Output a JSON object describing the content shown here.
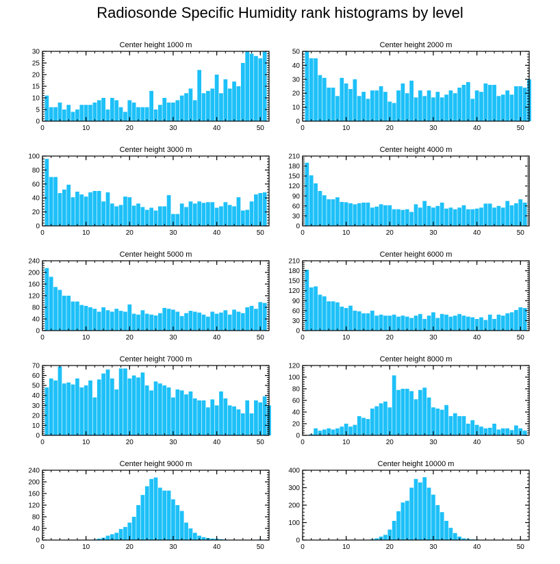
{
  "title": "Radiosonde Specific Humidity rank histograms by level",
  "colors": {
    "bar": "#1ec0f8",
    "axis": "#000000",
    "background": "#ffffff"
  },
  "chart_data": [
    {
      "type": "bar",
      "title": "Center height 1000 m",
      "x_ticks": [
        0,
        10,
        20,
        30,
        40,
        50
      ],
      "xlim": [
        0,
        52
      ],
      "y_ticks": [
        0,
        5,
        10,
        15,
        20,
        25,
        30
      ],
      "ylim": [
        0,
        30
      ],
      "values": [
        11,
        6,
        6,
        8,
        5,
        7,
        4,
        5,
        7,
        7,
        7,
        8,
        9,
        10,
        5,
        10,
        9,
        6,
        4,
        9,
        8,
        6,
        6,
        6,
        13,
        5,
        7,
        10,
        8,
        8,
        9,
        11,
        12,
        14,
        9,
        22,
        12,
        13,
        14,
        20,
        12,
        18,
        14,
        17,
        15,
        25,
        30,
        29,
        28,
        27,
        30
      ]
    },
    {
      "type": "bar",
      "title": "Center height 2000 m",
      "x_ticks": [
        0,
        10,
        20,
        30,
        40,
        50
      ],
      "xlim": [
        0,
        52
      ],
      "y_ticks": [
        0,
        10,
        20,
        30,
        40,
        50
      ],
      "ylim": [
        0,
        50
      ],
      "values": [
        50,
        45,
        45,
        33,
        31,
        24,
        24,
        18,
        31,
        27,
        23,
        30,
        18,
        21,
        16,
        22,
        22,
        25,
        21,
        14,
        13,
        22,
        27,
        20,
        29,
        17,
        22,
        18,
        22,
        17,
        21,
        17,
        19,
        22,
        20,
        24,
        26,
        28,
        16,
        22,
        21,
        27,
        26,
        26,
        18,
        19,
        22,
        19,
        25,
        25,
        24,
        30
      ]
    },
    {
      "type": "bar",
      "title": "Center height 3000 m",
      "x_ticks": [
        0,
        10,
        20,
        30,
        40,
        50
      ],
      "xlim": [
        0,
        52
      ],
      "y_ticks": [
        0,
        20,
        40,
        60,
        80,
        100
      ],
      "ylim": [
        0,
        100
      ],
      "values": [
        96,
        70,
        70,
        47,
        52,
        59,
        41,
        49,
        45,
        42,
        48,
        50,
        50,
        35,
        48,
        32,
        28,
        30,
        42,
        41,
        29,
        32,
        27,
        23,
        26,
        22,
        28,
        28,
        44,
        17,
        17,
        32,
        27,
        35,
        32,
        35,
        33,
        34,
        34,
        26,
        28,
        34,
        30,
        28,
        41,
        22,
        23,
        35,
        45,
        47,
        48
      ]
    },
    {
      "type": "bar",
      "title": "Center height 4000 m",
      "x_ticks": [
        0,
        10,
        20,
        30,
        40,
        50
      ],
      "xlim": [
        0,
        52
      ],
      "y_ticks": [
        0,
        30,
        60,
        90,
        120,
        150,
        180,
        210
      ],
      "ylim": [
        0,
        210
      ],
      "values": [
        190,
        152,
        128,
        105,
        92,
        80,
        80,
        86,
        72,
        71,
        68,
        65,
        68,
        70,
        70,
        55,
        58,
        65,
        62,
        62,
        50,
        50,
        48,
        50,
        42,
        65,
        55,
        75,
        60,
        55,
        60,
        70,
        52,
        55,
        50,
        55,
        62,
        50,
        50,
        52,
        55,
        67,
        67,
        55,
        60,
        55,
        75,
        62,
        68,
        80,
        70
      ]
    },
    {
      "type": "bar",
      "title": "Center height 5000 m",
      "x_ticks": [
        0,
        10,
        20,
        30,
        40,
        50
      ],
      "xlim": [
        0,
        52
      ],
      "y_ticks": [
        0,
        40,
        80,
        120,
        160,
        200,
        240
      ],
      "ylim": [
        0,
        240
      ],
      "values": [
        215,
        185,
        150,
        140,
        120,
        120,
        100,
        100,
        88,
        85,
        80,
        75,
        65,
        80,
        70,
        65,
        75,
        68,
        65,
        90,
        58,
        55,
        70,
        58,
        55,
        52,
        60,
        78,
        75,
        72,
        65,
        50,
        60,
        68,
        65,
        62,
        55,
        48,
        65,
        58,
        62,
        70,
        55,
        72,
        65,
        60,
        80,
        85,
        75,
        98,
        95
      ]
    },
    {
      "type": "bar",
      "title": "Center height 6000 m",
      "x_ticks": [
        0,
        10,
        20,
        30,
        40,
        50
      ],
      "xlim": [
        0,
        52
      ],
      "y_ticks": [
        0,
        30,
        60,
        90,
        120,
        150,
        180,
        210
      ],
      "ylim": [
        0,
        210
      ],
      "values": [
        183,
        130,
        133,
        108,
        103,
        88,
        88,
        85,
        72,
        68,
        75,
        60,
        58,
        52,
        52,
        60,
        45,
        48,
        45,
        45,
        48,
        42,
        45,
        42,
        38,
        45,
        50,
        35,
        45,
        55,
        38,
        50,
        48,
        42,
        45,
        50,
        45,
        42,
        40,
        35,
        40,
        32,
        48,
        35,
        48,
        45,
        52,
        55,
        62,
        70,
        68
      ]
    },
    {
      "type": "bar",
      "title": "Center height 7000 m",
      "x_ticks": [
        0,
        10,
        20,
        30,
        40,
        50
      ],
      "xlim": [
        0,
        52
      ],
      "y_ticks": [
        0,
        10,
        20,
        30,
        40,
        50,
        60,
        70
      ],
      "ylim": [
        0,
        70
      ],
      "values": [
        48,
        57,
        55,
        69,
        52,
        53,
        51,
        57,
        48,
        50,
        55,
        38,
        56,
        62,
        66,
        57,
        46,
        67,
        67,
        57,
        60,
        58,
        63,
        50,
        45,
        54,
        52,
        50,
        48,
        38,
        46,
        45,
        41,
        44,
        37,
        35,
        35,
        28,
        36,
        30,
        44,
        37,
        30,
        29,
        26,
        22,
        35,
        22,
        35,
        33,
        39,
        30
      ]
    },
    {
      "type": "bar",
      "title": "Center height 8000 m",
      "x_ticks": [
        0,
        10,
        20,
        30,
        40,
        50
      ],
      "xlim": [
        0,
        52
      ],
      "y_ticks": [
        0,
        20,
        40,
        60,
        80,
        100,
        120
      ],
      "ylim": [
        0,
        120
      ],
      "values": [
        0,
        2,
        12,
        8,
        10,
        12,
        10,
        12,
        15,
        20,
        15,
        18,
        33,
        30,
        28,
        46,
        50,
        55,
        58,
        48,
        103,
        78,
        80,
        80,
        76,
        62,
        78,
        82,
        65,
        48,
        46,
        44,
        52,
        33,
        38,
        33,
        33,
        20,
        26,
        18,
        15,
        12,
        13,
        20,
        10,
        12,
        12,
        9,
        17,
        12,
        8
      ]
    },
    {
      "type": "bar",
      "title": "Center height 9000 m",
      "x_ticks": [
        0,
        10,
        20,
        30,
        40,
        50
      ],
      "xlim": [
        0,
        52
      ],
      "y_ticks": [
        0,
        40,
        80,
        120,
        160,
        200,
        240
      ],
      "ylim": [
        0,
        240
      ],
      "values": [
        0,
        0,
        0,
        0,
        0,
        0,
        0,
        0,
        0,
        0,
        0,
        2,
        5,
        8,
        15,
        20,
        25,
        38,
        45,
        60,
        80,
        120,
        155,
        185,
        210,
        215,
        180,
        170,
        170,
        140,
        120,
        100,
        60,
        40,
        25,
        15,
        10,
        7,
        5,
        5,
        3,
        2,
        1,
        0,
        0,
        0,
        0,
        0,
        0,
        2,
        0
      ]
    },
    {
      "type": "bar",
      "title": "Center height 10000 m",
      "x_ticks": [
        0,
        10,
        20,
        30,
        40,
        50
      ],
      "xlim": [
        0,
        52
      ],
      "y_ticks": [
        0,
        100,
        200,
        300,
        400
      ],
      "ylim": [
        0,
        400
      ],
      "values": [
        0,
        0,
        0,
        0,
        0,
        0,
        0,
        0,
        0,
        0,
        0,
        0,
        0,
        0,
        0,
        5,
        10,
        20,
        30,
        60,
        110,
        165,
        215,
        225,
        300,
        350,
        330,
        360,
        300,
        260,
        200,
        160,
        110,
        70,
        40,
        20,
        10,
        6,
        4,
        3,
        2,
        2,
        1,
        1,
        1,
        1,
        0,
        0,
        0,
        0,
        0
      ]
    }
  ]
}
